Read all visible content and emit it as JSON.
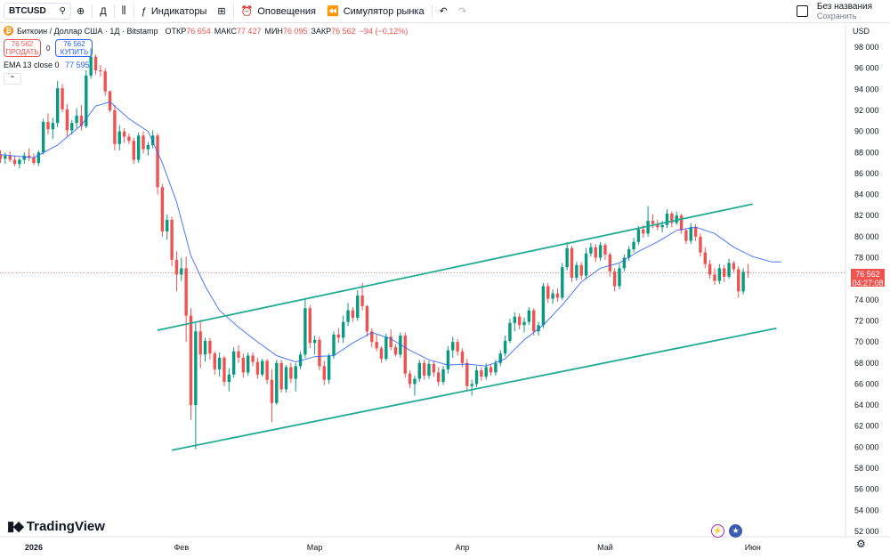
{
  "toolbar": {
    "symbol": "BTCUSD",
    "timeframe": "Д",
    "indicators_label": "Индикаторы",
    "alerts_label": "Оповещения",
    "replay_label": "Симулятор рынка",
    "layout_name": "Без названия",
    "save_label": "Сохранить"
  },
  "legend": {
    "title": "Биткоин / Доллар США · 1Д · Bitstamp",
    "open_label": "ОТКР",
    "open": "76 654",
    "high_label": "МАКС",
    "high": "77 427",
    "low_label": "МИН",
    "low": "76 095",
    "close_label": "ЗАКР",
    "close": "76 562",
    "change": "−94 (−0,12%)",
    "sell_price": "76 562",
    "sell_label": "ПРОДАТЬ",
    "spread": "0",
    "buy_price": "76 562",
    "buy_label": "КУПИТЬ",
    "ema_label": "EMA 13 close 0",
    "ema_value": "77 595"
  },
  "price_scale": {
    "currency": "USD",
    "last_price": "76 562",
    "countdown": "04:27:08"
  },
  "brand": {
    "name": "TradingView"
  },
  "colors": {
    "up": "#089981",
    "down": "#ef5350",
    "ema": "#2962ff",
    "channel": "#22ab94"
  },
  "chart_data": {
    "type": "candlestick",
    "title": "Биткоин / Доллар США · 1Д · Bitstamp",
    "x_ticks": [
      "2026",
      "Фев",
      "Мар",
      "Апр",
      "Май",
      "Июн"
    ],
    "y_ticks": [
      52000,
      54000,
      56000,
      58000,
      60000,
      62000,
      64000,
      66000,
      68000,
      70000,
      72000,
      74000,
      76000,
      78000,
      80000,
      82000,
      84000,
      86000,
      88000,
      90000,
      92000,
      94000,
      96000,
      98000
    ],
    "ylim": [
      51000,
      99000
    ],
    "y_scale_min": 51000,
    "y_scale_max": 99000,
    "first_day": "2025-12-25",
    "days": 165,
    "candles": [
      [
        87800,
        88200,
        87000,
        87400
      ],
      [
        87400,
        88000,
        86900,
        87700
      ],
      [
        87700,
        88100,
        87100,
        87300
      ],
      [
        87300,
        87700,
        86700,
        86900
      ],
      [
        86900,
        87500,
        86500,
        87300
      ],
      [
        87300,
        88000,
        86900,
        87700
      ],
      [
        87700,
        88400,
        87200,
        87500
      ],
      [
        87500,
        87900,
        86800,
        87000
      ],
      [
        87000,
        88200,
        86700,
        88000
      ],
      [
        88000,
        91200,
        87800,
        90900
      ],
      [
        90900,
        91700,
        89700,
        90200
      ],
      [
        90200,
        91300,
        89300,
        90800
      ],
      [
        90800,
        94800,
        90400,
        94100
      ],
      [
        94100,
        94500,
        91800,
        92100
      ],
      [
        92100,
        92600,
        89500,
        90100
      ],
      [
        90100,
        91100,
        89700,
        90800
      ],
      [
        90800,
        92200,
        90300,
        91500
      ],
      [
        91500,
        92500,
        90100,
        90500
      ],
      [
        90500,
        95800,
        90300,
        95300
      ],
      [
        95300,
        97900,
        95000,
        97100
      ],
      [
        97100,
        97300,
        95400,
        95800
      ],
      [
        95800,
        96300,
        95200,
        95700
      ],
      [
        95700,
        96000,
        93400,
        93800
      ],
      [
        93800,
        93900,
        91800,
        92000
      ],
      [
        92000,
        92500,
        88200,
        88800
      ],
      [
        88800,
        90600,
        88200,
        90000
      ],
      [
        90000,
        90300,
        88900,
        89500
      ],
      [
        89500,
        89800,
        88800,
        89100
      ],
      [
        89100,
        89400,
        86900,
        87300
      ],
      [
        87300,
        89900,
        87000,
        89600
      ],
      [
        89600,
        90000,
        87900,
        88300
      ],
      [
        88300,
        89000,
        87700,
        88700
      ],
      [
        88700,
        90100,
        88400,
        89600
      ],
      [
        89600,
        89800,
        84000,
        84700
      ],
      [
        84700,
        85000,
        80000,
        80500
      ],
      [
        80500,
        82100,
        79700,
        81600
      ],
      [
        81600,
        81900,
        77200,
        77800
      ],
      [
        77800,
        78600,
        74800,
        76400
      ],
      [
        76400,
        78000,
        75800,
        77000
      ],
      [
        77000,
        78100,
        70000,
        72500
      ],
      [
        72500,
        73200,
        62600,
        64000
      ],
      [
        64000,
        71800,
        59800,
        71000
      ],
      [
        71000,
        72100,
        67500,
        68800
      ],
      [
        68800,
        70400,
        68100,
        70100
      ],
      [
        70100,
        70400,
        68300,
        68900
      ],
      [
        68900,
        69100,
        66900,
        67400
      ],
      [
        67400,
        69000,
        66700,
        68500
      ],
      [
        68500,
        68700,
        65800,
        66200
      ],
      [
        66200,
        67500,
        65300,
        66900
      ],
      [
        66900,
        69500,
        66600,
        69100
      ],
      [
        69100,
        69700,
        68000,
        68500
      ],
      [
        68500,
        68900,
        66600,
        67100
      ],
      [
        67100,
        69000,
        66800,
        68700
      ],
      [
        68700,
        69000,
        67700,
        68100
      ],
      [
        68100,
        68500,
        66500,
        66900
      ],
      [
        66900,
        68400,
        66700,
        68200
      ],
      [
        68200,
        68400,
        66000,
        66400
      ],
      [
        66400,
        67400,
        62400,
        64200
      ],
      [
        64200,
        68300,
        64000,
        68000
      ],
      [
        68000,
        68300,
        65200,
        65500
      ],
      [
        65500,
        67800,
        65200,
        67600
      ],
      [
        67600,
        68000,
        66100,
        66500
      ],
      [
        66500,
        68000,
        65300,
        67700
      ],
      [
        67700,
        69100,
        67400,
        68800
      ],
      [
        68800,
        74100,
        68500,
        73200
      ],
      [
        73200,
        73500,
        69400,
        69900
      ],
      [
        69900,
        70600,
        68800,
        70200
      ],
      [
        70200,
        70500,
        67300,
        67700
      ],
      [
        67700,
        68200,
        65900,
        66400
      ],
      [
        66400,
        68900,
        66000,
        68700
      ],
      [
        68700,
        71000,
        68400,
        70700
      ],
      [
        70700,
        71300,
        69900,
        70400
      ],
      [
        70400,
        72500,
        69900,
        71900
      ],
      [
        71900,
        73700,
        71500,
        73000
      ],
      [
        73000,
        73300,
        71900,
        72300
      ],
      [
        72300,
        74900,
        72000,
        74400
      ],
      [
        74400,
        75600,
        73000,
        73400
      ],
      [
        73400,
        73500,
        70500,
        71000
      ],
      [
        71000,
        71300,
        69500,
        70000
      ],
      [
        70000,
        70700,
        69100,
        69400
      ],
      [
        69400,
        69600,
        68000,
        68400
      ],
      [
        68400,
        70800,
        68200,
        70500
      ],
      [
        70500,
        71200,
        69200,
        69500
      ],
      [
        69500,
        69800,
        68600,
        68800
      ],
      [
        68800,
        70900,
        68500,
        70600
      ],
      [
        70600,
        70900,
        66600,
        67000
      ],
      [
        67000,
        67300,
        65600,
        66000
      ],
      [
        66000,
        66800,
        64900,
        66500
      ],
      [
        66500,
        68300,
        66200,
        68000
      ],
      [
        68000,
        68300,
        66400,
        66800
      ],
      [
        66800,
        68200,
        66500,
        67900
      ],
      [
        67900,
        68200,
        66700,
        67100
      ],
      [
        67100,
        67600,
        65800,
        66200
      ],
      [
        66200,
        67700,
        65900,
        67400
      ],
      [
        67400,
        69600,
        67000,
        69200
      ],
      [
        69200,
        70500,
        68500,
        70000
      ],
      [
        70000,
        70300,
        68700,
        69100
      ],
      [
        69100,
        69400,
        67600,
        68000
      ],
      [
        68000,
        68400,
        65300,
        65800
      ],
      [
        65800,
        66400,
        64900,
        66000
      ],
      [
        66000,
        67700,
        65700,
        67300
      ],
      [
        67300,
        67600,
        66300,
        66700
      ],
      [
        66700,
        68000,
        66400,
        67600
      ],
      [
        67600,
        67900,
        66800,
        67100
      ],
      [
        67100,
        68300,
        66800,
        68000
      ],
      [
        68000,
        69200,
        67700,
        68900
      ],
      [
        68900,
        70600,
        68600,
        70100
      ],
      [
        70100,
        72200,
        69900,
        71800
      ],
      [
        71800,
        72800,
        71000,
        72400
      ],
      [
        72400,
        72700,
        71200,
        71600
      ],
      [
        71600,
        72300,
        70900,
        71900
      ],
      [
        71900,
        73300,
        71600,
        73000
      ],
      [
        73000,
        73200,
        70600,
        71000
      ],
      [
        71000,
        71900,
        70600,
        71600
      ],
      [
        71600,
        75600,
        71300,
        75300
      ],
      [
        75300,
        75600,
        73700,
        74100
      ],
      [
        74100,
        75000,
        73600,
        74600
      ],
      [
        74600,
        75100,
        73800,
        74200
      ],
      [
        74200,
        77500,
        74000,
        77100
      ],
      [
        77100,
        79500,
        76800,
        78900
      ],
      [
        78900,
        79100,
        75700,
        76100
      ],
      [
        76100,
        77600,
        75800,
        77300
      ],
      [
        77300,
        77600,
        75900,
        76300
      ],
      [
        76300,
        78900,
        76000,
        78400
      ],
      [
        78400,
        79400,
        78100,
        79000
      ],
      [
        79000,
        79300,
        77600,
        78000
      ],
      [
        78000,
        79500,
        77700,
        79200
      ],
      [
        79200,
        79400,
        77800,
        78300
      ],
      [
        78300,
        78500,
        76200,
        76700
      ],
      [
        76700,
        77000,
        74800,
        75300
      ],
      [
        75300,
        77400,
        75000,
        77000
      ],
      [
        77000,
        78300,
        76700,
        78000
      ],
      [
        78000,
        79100,
        77700,
        78800
      ],
      [
        78800,
        79900,
        78500,
        79500
      ],
      [
        79500,
        81000,
        79200,
        80700
      ],
      [
        80700,
        81100,
        79900,
        80300
      ],
      [
        80300,
        82900,
        80000,
        81500
      ],
      [
        81500,
        82100,
        80800,
        81200
      ],
      [
        81200,
        81600,
        80600,
        80900
      ],
      [
        80900,
        81500,
        80400,
        81100
      ],
      [
        81100,
        82600,
        80800,
        82200
      ],
      [
        82200,
        82400,
        80900,
        81300
      ],
      [
        81300,
        82400,
        81100,
        82000
      ],
      [
        82000,
        82200,
        80300,
        80600
      ],
      [
        80600,
        80800,
        79300,
        79600
      ],
      [
        79600,
        81300,
        79300,
        80900
      ],
      [
        80900,
        81200,
        79600,
        80000
      ],
      [
        80000,
        80300,
        78100,
        78500
      ],
      [
        78500,
        79000,
        77000,
        77400
      ],
      [
        77400,
        77800,
        76000,
        76400
      ],
      [
        76400,
        77000,
        75400,
        75800
      ],
      [
        75800,
        77400,
        75500,
        77000
      ],
      [
        77000,
        77300,
        75700,
        76200
      ],
      [
        76200,
        77900,
        76000,
        77500
      ],
      [
        77500,
        77700,
        76600,
        76900
      ],
      [
        76900,
        77200,
        74200,
        74800
      ],
      [
        74800,
        77000,
        74500,
        76656
      ],
      [
        76654,
        77427,
        76095,
        76562
      ]
    ],
    "ema13": [
      [
        0,
        87800
      ],
      [
        7,
        87500
      ],
      [
        12,
        88700
      ],
      [
        17,
        90600
      ],
      [
        20,
        92400
      ],
      [
        23,
        92800
      ],
      [
        27,
        91200
      ],
      [
        31,
        90000
      ],
      [
        34,
        87000
      ],
      [
        37,
        83300
      ],
      [
        40,
        78200
      ],
      [
        43,
        75300
      ],
      [
        46,
        73000
      ],
      [
        50,
        71400
      ],
      [
        54,
        70000
      ],
      [
        58,
        68700
      ],
      [
        62,
        68100
      ],
      [
        66,
        68600
      ],
      [
        70,
        68700
      ],
      [
        74,
        69900
      ],
      [
        78,
        70900
      ],
      [
        82,
        70300
      ],
      [
        86,
        69200
      ],
      [
        90,
        68300
      ],
      [
        94,
        67800
      ],
      [
        98,
        67900
      ],
      [
        102,
        67700
      ],
      [
        106,
        68400
      ],
      [
        110,
        70200
      ],
      [
        114,
        71600
      ],
      [
        118,
        73500
      ],
      [
        122,
        75700
      ],
      [
        126,
        77000
      ],
      [
        130,
        77500
      ],
      [
        134,
        78600
      ],
      [
        138,
        79500
      ],
      [
        142,
        80600
      ],
      [
        146,
        80900
      ],
      [
        150,
        80300
      ],
      [
        154,
        79000
      ],
      [
        158,
        78100
      ],
      [
        162,
        77600
      ],
      [
        164,
        77595
      ]
    ],
    "channel": {
      "upper": [
        [
          35,
          71300
        ],
        [
          158,
          83100
        ]
      ],
      "lower": [
        [
          38,
          59900
        ],
        [
          163,
          71300
        ]
      ]
    }
  }
}
